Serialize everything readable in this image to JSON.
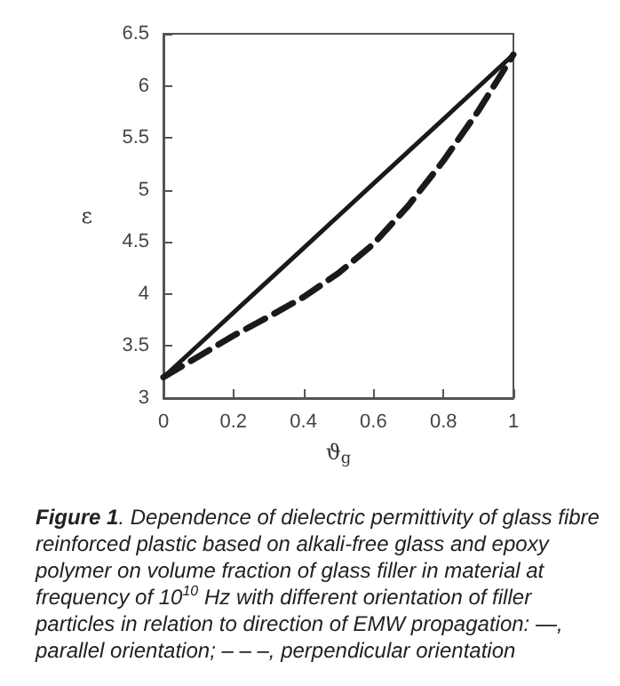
{
  "chart_data": {
    "type": "line",
    "xlabel": "ϑ$_{g}$",
    "ylabel": "ε",
    "xlim": [
      0,
      1
    ],
    "xticks": [
      0,
      0.2,
      0.4,
      0.6,
      0.8,
      1
    ],
    "ylim": [
      3,
      6.5
    ],
    "yticks": [
      3,
      3.5,
      4,
      4.5,
      5,
      5.5,
      6,
      6.5
    ],
    "grid": false,
    "marker": "none",
    "x": [
      0,
      0.1,
      0.2,
      0.3,
      0.4,
      0.5,
      0.6,
      0.7,
      0.8,
      0.9,
      1
    ],
    "series": [
      {
        "color": "#1a1a1a",
        "line_style": "solid",
        "values": [
          3.2,
          3.51,
          3.82,
          4.13,
          4.44,
          4.75,
          5.06,
          5.37,
          5.68,
          5.99,
          6.3
        ]
      },
      {
        "color": "#1a1a1a",
        "line_style": "dashed",
        "values": [
          3.2,
          3.4,
          3.6,
          3.78,
          3.97,
          4.2,
          4.48,
          4.85,
          5.28,
          5.76,
          6.3
        ]
      }
    ],
    "annotations": [
      "Figure 1",
      ". Dependence of dielectric permittivity of glass fibre reinforced plastic based on alkali-free glass and epoxy polymer on volume fraction of glass filler in material at frequency of 10$^{10}$ Hz with different orientation of filler particles in relation to direction of EMW propagation: —, parallel orientation; – – –, perpendicular orientation"
    ]
  }
}
